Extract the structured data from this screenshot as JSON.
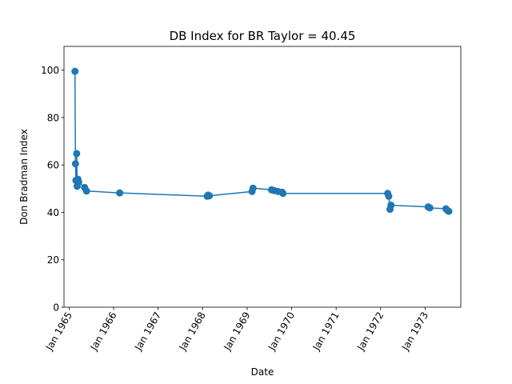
{
  "chart_data": {
    "type": "line",
    "title": "DB Index for BR Taylor = 40.45",
    "xlabel": "Date",
    "ylabel": "Don Bradman Index",
    "ylim": [
      0,
      110
    ],
    "xlim": [
      "1964-11-20",
      "1973-10-20"
    ],
    "yticks": [
      0,
      20,
      40,
      60,
      80,
      100
    ],
    "xticks": [
      {
        "date": "1965-01-01",
        "label": "Jan 1965"
      },
      {
        "date": "1966-01-01",
        "label": "Jan 1966"
      },
      {
        "date": "1967-01-01",
        "label": "Jan 1967"
      },
      {
        "date": "1968-01-01",
        "label": "Jan 1968"
      },
      {
        "date": "1969-01-01",
        "label": "Jan 1969"
      },
      {
        "date": "1970-01-01",
        "label": "Jan 1970"
      },
      {
        "date": "1971-01-01",
        "label": "Jan 1971"
      },
      {
        "date": "1972-01-01",
        "label": "Jan 1972"
      },
      {
        "date": "1973-01-01",
        "label": "Jan 1973"
      }
    ],
    "grid": false,
    "legend": "none",
    "color": "#1f77b4",
    "series": [
      {
        "x": [
          "1965-02-18",
          "1965-02-22",
          "1965-02-26",
          "1965-03-04",
          "1965-03-08",
          "1965-03-14",
          "1965-03-20",
          "1965-05-08",
          "1965-05-24",
          "1966-02-20",
          "1968-02-08",
          "1968-02-16",
          "1968-02-26",
          "1969-02-10",
          "1969-02-18",
          "1969-07-20",
          "1969-08-10",
          "1969-09-10",
          "1969-10-14",
          "1969-10-22",
          "1972-02-28",
          "1972-03-08",
          "1972-03-18",
          "1972-03-26",
          "1973-01-25",
          "1973-02-08",
          "1973-06-20",
          "1973-07-05",
          "1973-07-14"
        ],
        "y": [
          99.5,
          60.5,
          53.5,
          64.8,
          51,
          54,
          52.8,
          50.5,
          49,
          48.2,
          46.8,
          47.3,
          47,
          48.8,
          50.2,
          49.5,
          49.2,
          48.8,
          48.5,
          48,
          48,
          46.8,
          41.3,
          43,
          42.3,
          41.9,
          41.5,
          40.7,
          40.45
        ]
      }
    ]
  }
}
